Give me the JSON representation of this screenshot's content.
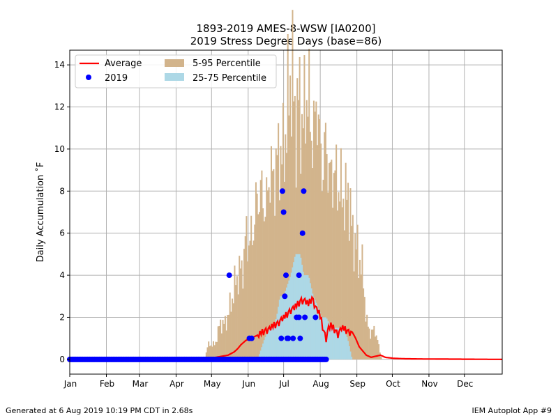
{
  "chart_data": {
    "type": "bar",
    "title": "1893-2019 AMES-8-WSW [IA0200]",
    "subtitle": "2019 Stress Degree Days (base=86)",
    "ylabel": "Daily Accumulation ˚F",
    "xlabel": "",
    "xlim": [
      1,
      367
    ],
    "ylim": [
      -0.7,
      14.7
    ],
    "month_labels": [
      "Jan",
      "Feb",
      "Mar",
      "Apr",
      "May",
      "Jun",
      "Jul",
      "Aug",
      "Sep",
      "Oct",
      "Nov",
      "Dec"
    ],
    "month_start_days": [
      1,
      32,
      60,
      91,
      121,
      152,
      182,
      213,
      244,
      274,
      305,
      335
    ],
    "yticks": [
      0,
      2,
      4,
      6,
      8,
      10,
      12,
      14
    ],
    "grid": true,
    "legend_placement": "top-left",
    "legend": {
      "average": "Average",
      "year": "2019",
      "p5_95": "5-95 Percentile",
      "p25_75": "25-75 Percentile"
    },
    "colors": {
      "average": "#ff0000",
      "year": "#0000ff",
      "p5_95": "#d2b48c",
      "p25_75": "#add8e6"
    },
    "p95_knots": [
      [
        1,
        0
      ],
      [
        115,
        0
      ],
      [
        118,
        0.7
      ],
      [
        124,
        0.7
      ],
      [
        128,
        1.7
      ],
      [
        133,
        1.7
      ],
      [
        136,
        2.4
      ],
      [
        139,
        3.0
      ],
      [
        141,
        3.7
      ],
      [
        145,
        4.2
      ],
      [
        148,
        4.5
      ],
      [
        150,
        6.0
      ],
      [
        153,
        5.5
      ],
      [
        156,
        6.0
      ],
      [
        159,
        7.5
      ],
      [
        163,
        8.0
      ],
      [
        167,
        7.0
      ],
      [
        170,
        9.0
      ],
      [
        173,
        8.5
      ],
      [
        176,
        9.3
      ],
      [
        179,
        10.0
      ],
      [
        181,
        9.5
      ],
      [
        184,
        11.0
      ],
      [
        186,
        12.5
      ],
      [
        189,
        14.0
      ],
      [
        192,
        11.0
      ],
      [
        195,
        12.5
      ],
      [
        198,
        11.0
      ],
      [
        202,
        13.0
      ],
      [
        205,
        11.0
      ],
      [
        208,
        10.5
      ],
      [
        210,
        13.0
      ],
      [
        212,
        10.5
      ],
      [
        215,
        9.0
      ],
      [
        218,
        10.5
      ],
      [
        221,
        8.5
      ],
      [
        224,
        9.0
      ],
      [
        228,
        8.3
      ],
      [
        231,
        8.0
      ],
      [
        234,
        7.5
      ],
      [
        237,
        8.0
      ],
      [
        240,
        6.0
      ],
      [
        243,
        5.5
      ],
      [
        246,
        4.8
      ],
      [
        249,
        4.2
      ],
      [
        252,
        1.8
      ],
      [
        256,
        1.2
      ],
      [
        259,
        1.5
      ],
      [
        261,
        1.0
      ],
      [
        265,
        0
      ],
      [
        367,
        0
      ]
    ],
    "p75_knots": [
      [
        1,
        0
      ],
      [
        160,
        0
      ],
      [
        163,
        0.5
      ],
      [
        166,
        1.0
      ],
      [
        170,
        1.5
      ],
      [
        173,
        1.5
      ],
      [
        176,
        2.0
      ],
      [
        179,
        3.0
      ],
      [
        182,
        3.0
      ],
      [
        185,
        3.5
      ],
      [
        188,
        4.0
      ],
      [
        192,
        5.0
      ],
      [
        196,
        5.0
      ],
      [
        199,
        4.0
      ],
      [
        203,
        4.0
      ],
      [
        207,
        3.0
      ],
      [
        211,
        2.5
      ],
      [
        214,
        2.0
      ],
      [
        218,
        2.0
      ],
      [
        222,
        1.5
      ],
      [
        226,
        1.5
      ],
      [
        232,
        1.5
      ],
      [
        236,
        1.0
      ],
      [
        240,
        0
      ],
      [
        367,
        0
      ]
    ],
    "average_knots": [
      [
        1,
        0
      ],
      [
        110,
        0.03
      ],
      [
        118,
        0.07
      ],
      [
        125,
        0.1
      ],
      [
        130,
        0.15
      ],
      [
        135,
        0.2
      ],
      [
        140,
        0.35
      ],
      [
        143,
        0.5
      ],
      [
        146,
        0.7
      ],
      [
        150,
        0.9
      ],
      [
        154,
        1.0
      ],
      [
        158,
        1.1
      ],
      [
        162,
        1.2
      ],
      [
        165,
        1.3
      ],
      [
        168,
        1.4
      ],
      [
        171,
        1.5
      ],
      [
        174,
        1.6
      ],
      [
        177,
        1.7
      ],
      [
        180,
        1.9
      ],
      [
        183,
        2.0
      ],
      [
        186,
        2.2
      ],
      [
        189,
        2.4
      ],
      [
        192,
        2.5
      ],
      [
        194,
        2.6
      ],
      [
        197,
        2.8
      ],
      [
        200,
        2.8
      ],
      [
        203,
        2.6
      ],
      [
        206,
        2.9
      ],
      [
        209,
        2.5
      ],
      [
        212,
        2.2
      ],
      [
        214,
        1.8
      ],
      [
        216,
        1.3
      ],
      [
        218,
        1.0
      ],
      [
        220,
        1.5
      ],
      [
        222,
        1.6
      ],
      [
        225,
        1.4
      ],
      [
        228,
        1.2
      ],
      [
        231,
        1.5
      ],
      [
        234,
        1.4
      ],
      [
        237,
        1.3
      ],
      [
        240,
        1.3
      ],
      [
        243,
        1.0
      ],
      [
        246,
        0.6
      ],
      [
        249,
        0.4
      ],
      [
        252,
        0.2
      ],
      [
        256,
        0.1
      ],
      [
        260,
        0.15
      ],
      [
        264,
        0.2
      ],
      [
        268,
        0.1
      ],
      [
        275,
        0.05
      ],
      [
        285,
        0.03
      ],
      [
        300,
        0.02
      ],
      [
        367,
        0
      ]
    ],
    "average_noise": [
      0.15,
      -0.2,
      0.25,
      -0.1,
      0.3,
      -0.25,
      0.1,
      0.2,
      -0.3,
      0.05
    ],
    "year_zero_last_day": 218,
    "year_points": [
      [
        136,
        4
      ],
      [
        153,
        1
      ],
      [
        155,
        1
      ],
      [
        180,
        1
      ],
      [
        181,
        8
      ],
      [
        182,
        7
      ],
      [
        183,
        3
      ],
      [
        184,
        4
      ],
      [
        185,
        1
      ],
      [
        186,
        1
      ],
      [
        190,
        1
      ],
      [
        193,
        2
      ],
      [
        195,
        4
      ],
      [
        195,
        2
      ],
      [
        196,
        1
      ],
      [
        198,
        6
      ],
      [
        199,
        8
      ],
      [
        200,
        2
      ],
      [
        209,
        2
      ]
    ]
  },
  "footer": {
    "left": "Generated at 6 Aug 2019 10:19 PM CDT in 2.68s",
    "right": "IEM Autoplot App #9"
  }
}
